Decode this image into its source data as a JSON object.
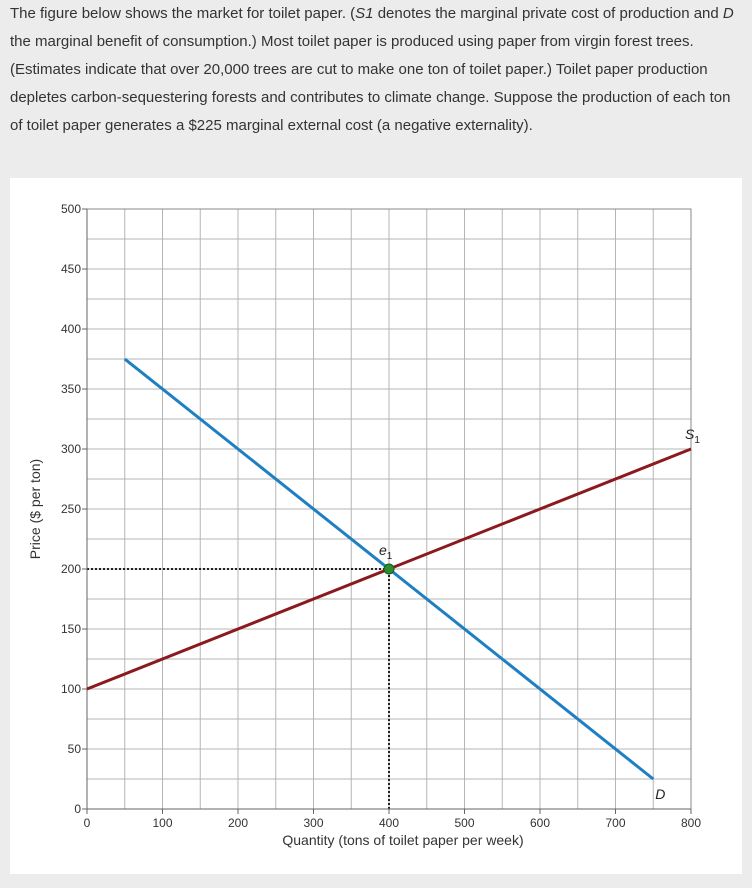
{
  "question": {
    "segments": [
      {
        "text": "The figure below shows the market for toilet paper. (",
        "italic": false
      },
      {
        "text": "S1",
        "italic": true
      },
      {
        "text": " denotes the marginal private cost of production and ",
        "italic": false
      },
      {
        "text": "D",
        "italic": true
      },
      {
        "text": " the marginal benefit of consumption.) Most toilet paper is produced using paper from virgin forest trees. (Estimates indicate that over 20,000 trees are cut to make one ton of toilet paper.) Toilet paper production depletes carbon-sequestering forests and contributes to climate change. Suppose the production of each ton of toilet paper generates a $225 marginal external cost (a negative externality).",
        "italic": false
      }
    ]
  },
  "chart_data": {
    "type": "line",
    "xlabel": "Quantity (tons of toilet paper per week)",
    "ylabel": "Price ($ per ton)",
    "xlim": [
      0,
      800
    ],
    "ylim": [
      0,
      500
    ],
    "x_ticks": [
      "0",
      "100",
      "200",
      "300",
      "400",
      "500",
      "600",
      "700",
      "800"
    ],
    "y_ticks": [
      "0",
      "50",
      "100",
      "150",
      "200",
      "250",
      "300",
      "350",
      "400",
      "450",
      "500"
    ],
    "x_tick_values": [
      0,
      100,
      200,
      300,
      400,
      500,
      600,
      700,
      800
    ],
    "y_tick_values": [
      0,
      50,
      100,
      150,
      200,
      250,
      300,
      350,
      400,
      450,
      500
    ],
    "grid": true,
    "series": [
      {
        "name": "S1",
        "label_main": "S",
        "label_sub": "1",
        "color": "#8b1a1f",
        "x": [
          0,
          800
        ],
        "y": [
          100,
          300
        ]
      },
      {
        "name": "D",
        "label_main": "D",
        "label_sub": "",
        "color": "#1e7fc2",
        "x": [
          50,
          750
        ],
        "y": [
          375,
          25
        ]
      }
    ],
    "points": [
      {
        "label_main": "e",
        "label_sub": "1",
        "x": 400,
        "y": 200,
        "color": "#2e8b2e"
      }
    ],
    "guides": [
      {
        "from": [
          0,
          200
        ],
        "to": [
          400,
          200
        ]
      },
      {
        "from": [
          400,
          0
        ],
        "to": [
          400,
          200
        ]
      }
    ]
  }
}
